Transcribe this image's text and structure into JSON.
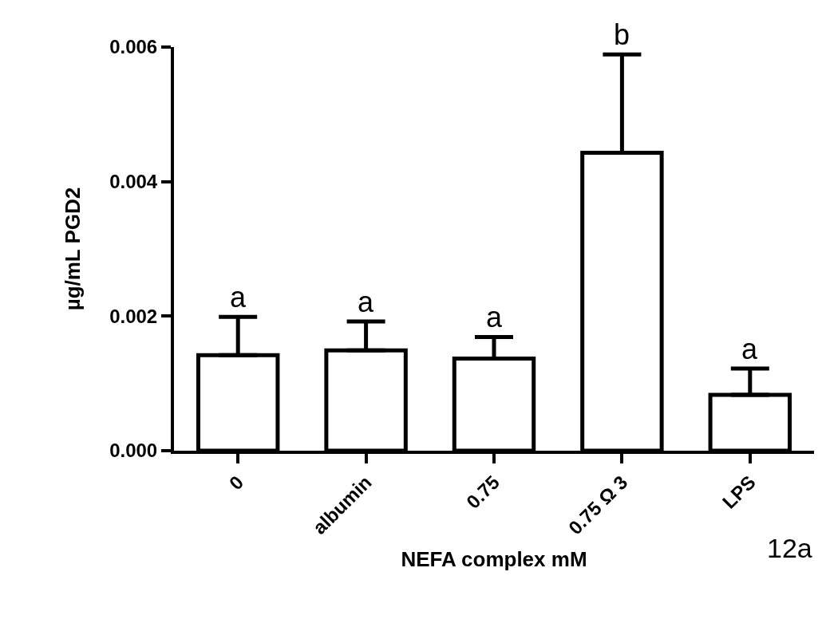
{
  "chart_data": {
    "type": "bar",
    "xlabel": "NEFA complex mM",
    "ylabel": "µg/mL PGD2",
    "categories": [
      "0",
      "albumin",
      "0.75",
      "0.75 Ω 3",
      "LPS"
    ],
    "values": [
      0.00142,
      0.00149,
      0.00137,
      0.00443,
      0.00083
    ],
    "errors": [
      [
        0.00142,
        0.00199
      ],
      [
        0.00149,
        0.00192
      ],
      [
        0.00137,
        0.00169
      ],
      [
        0.00443,
        0.00589
      ],
      [
        0.00083,
        0.00122
      ]
    ],
    "color": "#ffffff",
    "ylim": [
      0,
      0.006
    ],
    "yticks": [
      {
        "value": 0,
        "label": "0.000"
      },
      {
        "value": 0.002,
        "label": "0.002"
      },
      {
        "value": 0.004,
        "label": "0.004"
      },
      {
        "value": 0.006,
        "label": "0.006"
      }
    ],
    "grid": false,
    "annotations": [
      {
        "text": "a",
        "x": "0",
        "y": 0.00199
      },
      {
        "text": "a",
        "x": "albumin",
        "y": 0.00192
      },
      {
        "text": "a",
        "x": "0.75",
        "y": 0.00169
      },
      {
        "text": "b",
        "x": "0.75 Ω 3",
        "y": 0.00589
      },
      {
        "text": "a",
        "x": "LPS",
        "y": 0.00122
      },
      "12a"
    ]
  }
}
